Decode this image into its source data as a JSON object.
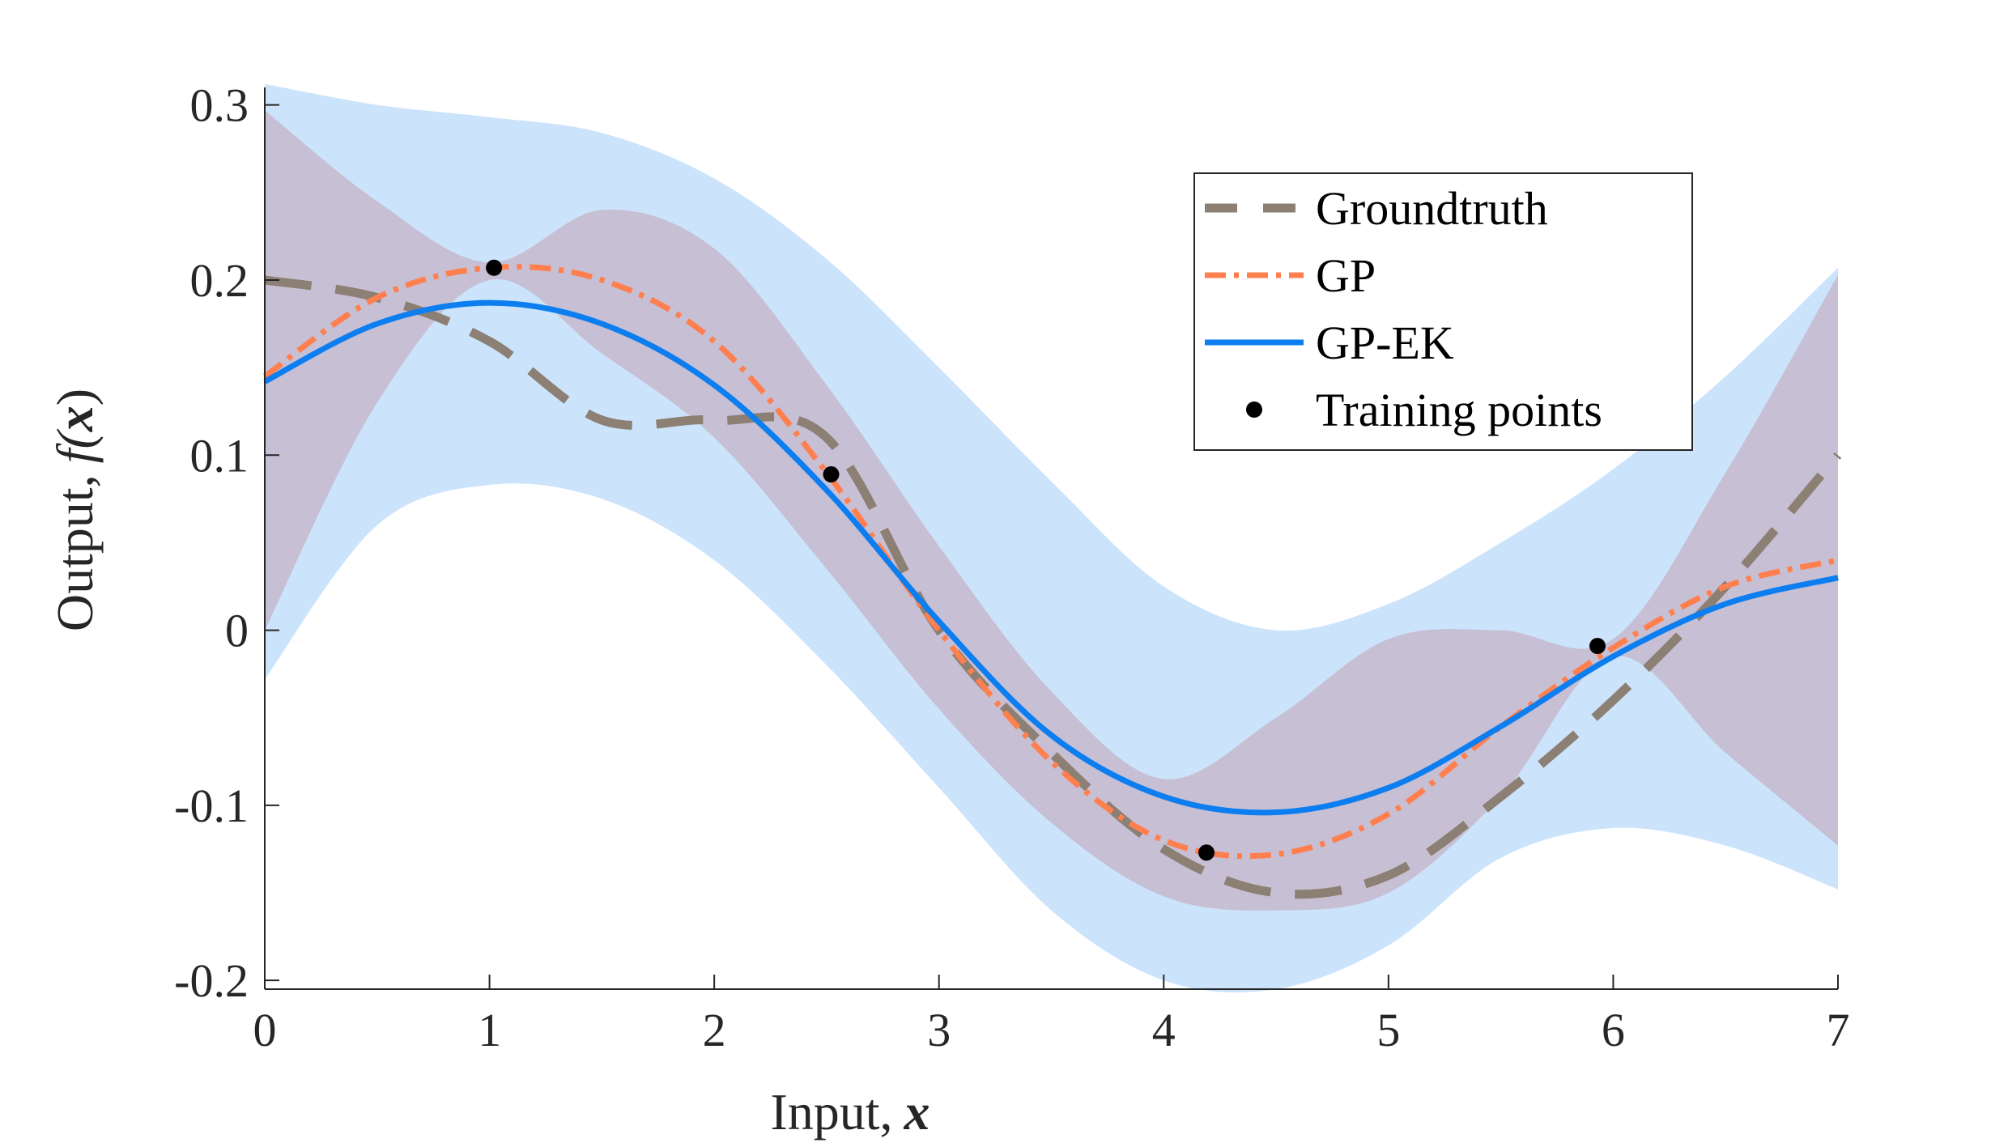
{
  "chart_data": {
    "type": "line",
    "xlabel": "Input,",
    "xlabel_var": "x",
    "ylabel": "Output,",
    "ylabel_func": "f(",
    "ylabel_var": "x",
    "ylabel_close": ")",
    "xlim": [
      0,
      7
    ],
    "ylim": [
      -0.205,
      0.31
    ],
    "xticks": [
      0,
      1,
      2,
      3,
      4,
      5,
      6,
      7
    ],
    "xtick_labels": [
      "0",
      "1",
      "2",
      "3",
      "4",
      "5",
      "6",
      "7"
    ],
    "yticks": [
      -0.2,
      -0.1,
      0,
      0.1,
      0.2,
      0.3
    ],
    "ytick_labels": [
      "-0.2",
      "-0.1",
      "0",
      "0.1",
      "0.2",
      "0.3"
    ],
    "grid": false,
    "legend_position": "top-right",
    "x": [
      0,
      0.5,
      1,
      1.5,
      2,
      2.5,
      3,
      3.5,
      4,
      4.5,
      5,
      5.5,
      6,
      6.5,
      7
    ],
    "series": [
      {
        "name": "Groundtruth",
        "style": "dashed",
        "color": "#8c7f73",
        "values": [
          0.2,
          0.19,
          0.165,
          0.12,
          0.12,
          0.11,
          0.0,
          -0.07,
          -0.125,
          -0.15,
          -0.14,
          -0.095,
          -0.04,
          0.025,
          0.1
        ]
      },
      {
        "name": "GP",
        "style": "dash-dot",
        "color": "#ff7f4f",
        "values": [
          0.145,
          0.19,
          0.207,
          0.2,
          0.165,
          0.09,
          0.0,
          -0.075,
          -0.12,
          -0.128,
          -0.105,
          -0.055,
          -0.01,
          0.025,
          0.04
        ]
      },
      {
        "name": "GP-EK",
        "style": "solid",
        "color": "#0d7ef0",
        "values": [
          0.142,
          0.175,
          0.187,
          0.175,
          0.14,
          0.08,
          0.005,
          -0.06,
          -0.095,
          -0.104,
          -0.09,
          -0.055,
          -0.015,
          0.015,
          0.03
        ]
      },
      {
        "name": "Training points",
        "style": "markers",
        "color": "#000000",
        "points": [
          [
            1.02,
            0.207
          ],
          [
            2.52,
            0.089
          ],
          [
            4.19,
            -0.127
          ],
          [
            5.93,
            -0.009
          ]
        ]
      }
    ],
    "bands": [
      {
        "color": "#cbe4fb",
        "upper": [
          0.312,
          0.3,
          0.293,
          0.284,
          0.258,
          0.212,
          0.15,
          0.085,
          0.025,
          0.0,
          0.015,
          0.05,
          0.092,
          0.145,
          0.207
        ],
        "lower": [
          -0.028,
          0.06,
          0.083,
          0.075,
          0.04,
          -0.02,
          -0.09,
          -0.16,
          -0.2,
          -0.205,
          -0.18,
          -0.13,
          -0.113,
          -0.123,
          -0.148
        ]
      },
      {
        "color": "#c7bfd4",
        "upper": [
          0.297,
          0.245,
          0.21,
          0.24,
          0.218,
          0.14,
          0.048,
          -0.035,
          -0.085,
          -0.05,
          -0.005,
          0.0,
          -0.005,
          0.09,
          0.203
        ],
        "lower": [
          0.0,
          0.13,
          0.2,
          0.158,
          0.11,
          0.035,
          -0.045,
          -0.11,
          -0.152,
          -0.16,
          -0.15,
          -0.095,
          -0.015,
          -0.07,
          -0.123
        ]
      }
    ]
  }
}
